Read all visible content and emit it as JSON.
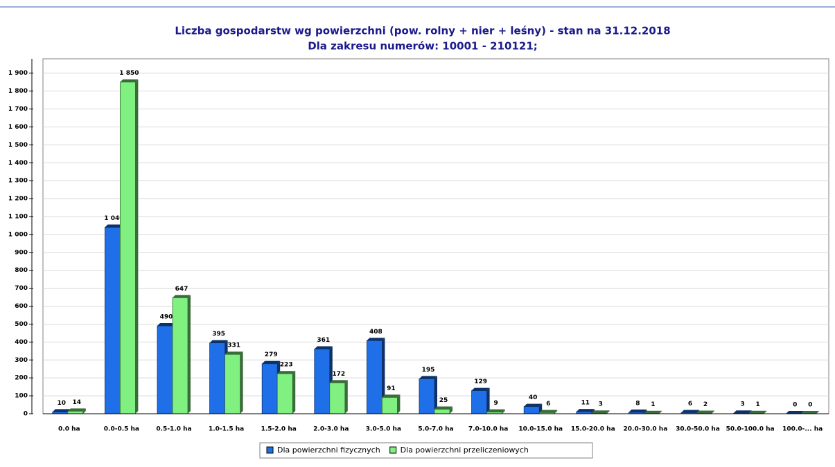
{
  "chart_data": {
    "type": "bar",
    "title": "Liczba gospodarstw wg powierzchni (pow. rolny + nier + leśny) - stan na 31.12.2018",
    "subtitle": "Dla zakresu numerów: 10001 - 210121;",
    "categories": [
      "0.0 ha",
      "0.0-0.5 ha",
      "0.5-1.0 ha",
      "1.0-1.5 ha",
      "1.5-2.0 ha",
      "2.0-3.0 ha",
      "3.0-5.0 ha",
      "5.0-7.0 ha",
      "7.0-10.0 ha",
      "10.0-15.0 ha",
      "15.0-20.0 ha",
      "20.0-30.0 ha",
      "30.0-50.0 ha",
      "50.0-100.0 ha",
      "100.0-... ha"
    ],
    "series": [
      {
        "name": "Dla powierzchni fizycznych",
        "color": "#1f6fe8",
        "values": [
          10,
          1040,
          490,
          395,
          279,
          361,
          408,
          195,
          129,
          40,
          11,
          8,
          6,
          3,
          0
        ],
        "value_labels": [
          "10",
          "1 040",
          "490",
          "395",
          "279",
          "361",
          "408",
          "195",
          "129",
          "40",
          "11",
          "8",
          "6",
          "3",
          "0"
        ]
      },
      {
        "name": "Dla powierzchni przeliczeniowych",
        "color": "#80f080",
        "values": [
          14,
          1850,
          647,
          331,
          223,
          172,
          91,
          25,
          9,
          6,
          3,
          1,
          2,
          1,
          0
        ],
        "value_labels": [
          "14",
          "1 850",
          "647",
          "331",
          "223",
          "172",
          "91",
          "25",
          "9",
          "6",
          "3",
          "1",
          "2",
          "1",
          "0"
        ]
      }
    ],
    "ylim": [
      0,
      1980
    ],
    "yticks": [
      0,
      100,
      200,
      300,
      400,
      500,
      600,
      700,
      800,
      900,
      {
        "value": 1000,
        "label": "1 000"
      },
      {
        "value": 1100,
        "label": "1 100"
      },
      {
        "value": 1200,
        "label": "1 200"
      },
      {
        "value": 1300,
        "label": "1 300"
      },
      {
        "value": 1400,
        "label": "1 400"
      },
      {
        "value": 1500,
        "label": "1 500"
      },
      {
        "value": 1600,
        "label": "1 600"
      },
      {
        "value": 1700,
        "label": "1 700"
      },
      {
        "value": 1800,
        "label": "1 800"
      },
      {
        "value": 1900,
        "label": "1 900"
      }
    ],
    "grid": true,
    "legend": "bottom"
  }
}
